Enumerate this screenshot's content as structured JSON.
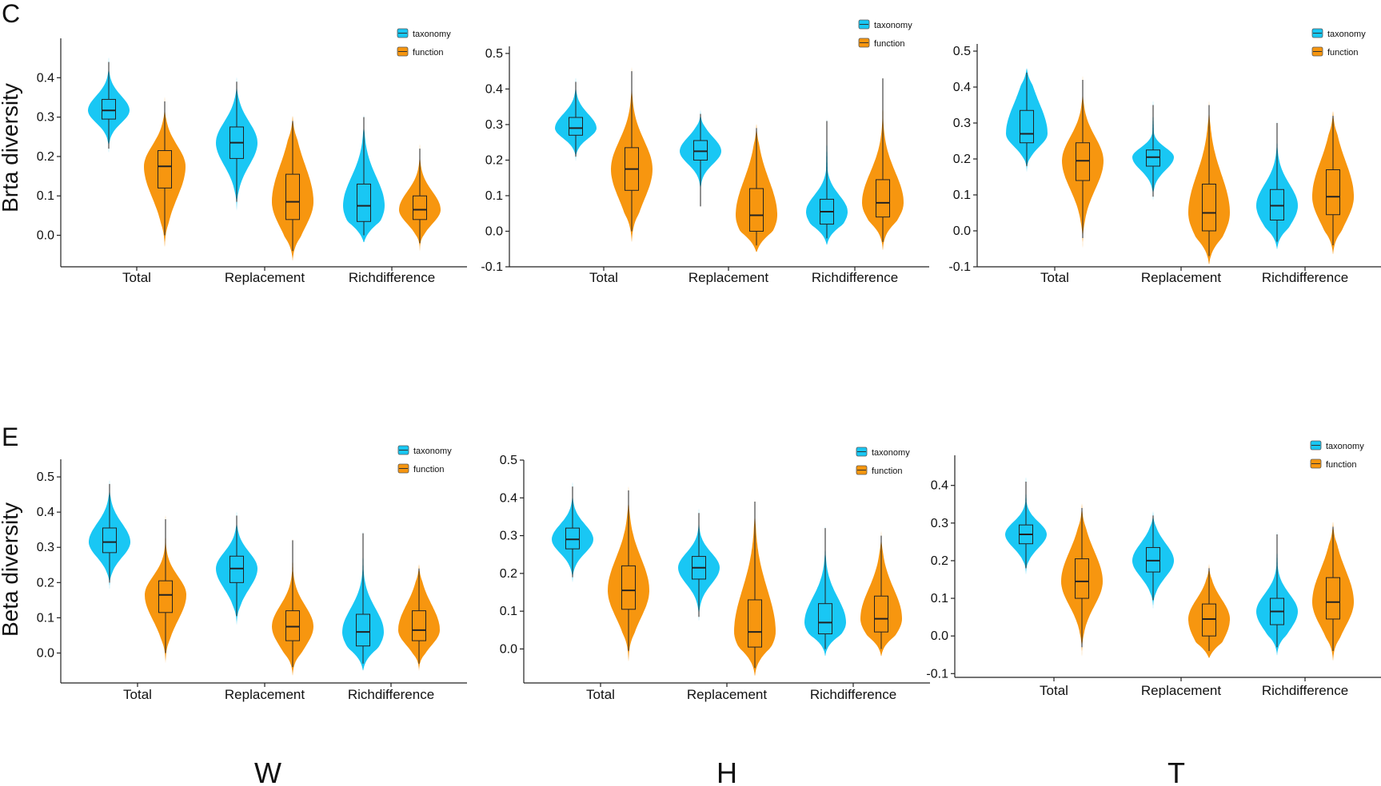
{
  "figure": {
    "rows": [
      {
        "letter": "C",
        "ylabel": "Brta diversity"
      },
      {
        "letter": "E",
        "ylabel": "Beta diversity"
      }
    ],
    "column_labels": [
      "W",
      "H",
      "T"
    ]
  },
  "colors": {
    "taxonomy": "#19C7F4",
    "function": "#F7960F",
    "box_stroke": "#222222",
    "axis": "#222222"
  },
  "chart_data": [
    {
      "type": "violin",
      "row": "C",
      "column": "W",
      "ylabel": "Brta diversity",
      "categories": [
        "Total",
        "Replacement",
        "Richdifference"
      ],
      "legend": [
        "taxonomy",
        "function"
      ],
      "ylim": [
        -0.08,
        0.5
      ],
      "yticks": [
        "0.0",
        "0.1",
        "0.2",
        "0.3",
        "0.4"
      ],
      "series": [
        {
          "name": "taxonomy",
          "stats": [
            {
              "min": 0.22,
              "q1": 0.295,
              "median": 0.317,
              "q3": 0.345,
              "max": 0.44
            },
            {
              "min": 0.085,
              "q1": 0.195,
              "median": 0.235,
              "q3": 0.275,
              "max": 0.39
            },
            {
              "min": 0.0,
              "q1": 0.035,
              "median": 0.075,
              "q3": 0.13,
              "max": 0.3
            }
          ]
        },
        {
          "name": "function",
          "stats": [
            {
              "min": 0.0,
              "q1": 0.12,
              "median": 0.175,
              "q3": 0.215,
              "max": 0.34
            },
            {
              "min": -0.04,
              "q1": 0.04,
              "median": 0.085,
              "q3": 0.155,
              "max": 0.29
            },
            {
              "min": -0.02,
              "q1": 0.04,
              "median": 0.065,
              "q3": 0.1,
              "max": 0.22
            }
          ]
        }
      ]
    },
    {
      "type": "violin",
      "row": "C",
      "column": "H",
      "ylabel": "",
      "categories": [
        "Total",
        "Replacement",
        "Richdifference"
      ],
      "legend": [
        "taxonomy",
        "function"
      ],
      "ylim": [
        -0.1,
        0.52
      ],
      "yticks": [
        "-0.1",
        "0.0",
        "0.1",
        "0.2",
        "0.3",
        "0.4",
        "0.5"
      ],
      "series": [
        {
          "name": "taxonomy",
          "stats": [
            {
              "min": 0.21,
              "q1": 0.27,
              "median": 0.29,
              "q3": 0.32,
              "max": 0.42
            },
            {
              "min": 0.07,
              "q1": 0.2,
              "median": 0.225,
              "q3": 0.255,
              "max": 0.33
            },
            {
              "min": -0.02,
              "q1": 0.02,
              "median": 0.055,
              "q3": 0.09,
              "max": 0.31
            }
          ]
        },
        {
          "name": "function",
          "stats": [
            {
              "min": 0.0,
              "q1": 0.115,
              "median": 0.175,
              "q3": 0.235,
              "max": 0.45
            },
            {
              "min": -0.04,
              "q1": 0.0,
              "median": 0.045,
              "q3": 0.12,
              "max": 0.29
            },
            {
              "min": -0.03,
              "q1": 0.04,
              "median": 0.08,
              "q3": 0.145,
              "max": 0.43
            }
          ]
        }
      ]
    },
    {
      "type": "violin",
      "row": "C",
      "column": "T",
      "ylabel": "",
      "categories": [
        "Total",
        "Replacement",
        "Richdifference"
      ],
      "legend": [
        "taxonomy",
        "function"
      ],
      "ylim": [
        -0.1,
        0.52
      ],
      "yticks": [
        "-0.1",
        "0.0",
        "0.1",
        "0.2",
        "0.3",
        "0.4",
        "0.5"
      ],
      "series": [
        {
          "name": "taxonomy",
          "stats": [
            {
              "min": 0.18,
              "q1": 0.245,
              "median": 0.27,
              "q3": 0.335,
              "max": 0.44
            },
            {
              "min": 0.095,
              "q1": 0.18,
              "median": 0.205,
              "q3": 0.225,
              "max": 0.35
            },
            {
              "min": -0.03,
              "q1": 0.03,
              "median": 0.07,
              "q3": 0.115,
              "max": 0.3
            }
          ]
        },
        {
          "name": "function",
          "stats": [
            {
              "min": -0.02,
              "q1": 0.14,
              "median": 0.195,
              "q3": 0.245,
              "max": 0.42
            },
            {
              "min": -0.07,
              "q1": 0.0,
              "median": 0.05,
              "q3": 0.13,
              "max": 0.35
            },
            {
              "min": -0.04,
              "q1": 0.045,
              "median": 0.095,
              "q3": 0.17,
              "max": 0.32
            }
          ]
        }
      ]
    },
    {
      "type": "violin",
      "row": "E",
      "column": "W",
      "ylabel": "Beta diversity",
      "categories": [
        "Total",
        "Replacement",
        "Richdifference"
      ],
      "legend": [
        "taxonomy",
        "function"
      ],
      "ylim": [
        -0.085,
        0.55
      ],
      "yticks": [
        "0.0",
        "0.1",
        "0.2",
        "0.3",
        "0.4",
        "0.5"
      ],
      "series": [
        {
          "name": "taxonomy",
          "stats": [
            {
              "min": 0.2,
              "q1": 0.285,
              "median": 0.315,
              "q3": 0.355,
              "max": 0.48
            },
            {
              "min": 0.105,
              "q1": 0.2,
              "median": 0.24,
              "q3": 0.275,
              "max": 0.39
            },
            {
              "min": -0.03,
              "q1": 0.02,
              "median": 0.06,
              "q3": 0.11,
              "max": 0.34
            }
          ]
        },
        {
          "name": "function",
          "stats": [
            {
              "min": 0.0,
              "q1": 0.115,
              "median": 0.165,
              "q3": 0.205,
              "max": 0.38
            },
            {
              "min": -0.04,
              "q1": 0.035,
              "median": 0.075,
              "q3": 0.12,
              "max": 0.32
            },
            {
              "min": -0.03,
              "q1": 0.035,
              "median": 0.065,
              "q3": 0.12,
              "max": 0.24
            }
          ]
        }
      ]
    },
    {
      "type": "violin",
      "row": "E",
      "column": "H",
      "ylabel": "",
      "categories": [
        "Total",
        "Replacement",
        "Richdifference"
      ],
      "legend": [
        "taxonomy",
        "function"
      ],
      "ylim": [
        -0.09,
        0.5
      ],
      "yticks": [
        "0.0",
        "0.1",
        "0.2",
        "0.3",
        "0.4",
        "0.5"
      ],
      "series": [
        {
          "name": "taxonomy",
          "stats": [
            {
              "min": 0.19,
              "q1": 0.265,
              "median": 0.29,
              "q3": 0.32,
              "max": 0.43
            },
            {
              "min": 0.085,
              "q1": 0.185,
              "median": 0.215,
              "q3": 0.245,
              "max": 0.36
            },
            {
              "min": 0.0,
              "q1": 0.04,
              "median": 0.07,
              "q3": 0.12,
              "max": 0.32
            }
          ]
        },
        {
          "name": "function",
          "stats": [
            {
              "min": -0.005,
              "q1": 0.105,
              "median": 0.155,
              "q3": 0.22,
              "max": 0.42
            },
            {
              "min": -0.05,
              "q1": 0.005,
              "median": 0.045,
              "q3": 0.13,
              "max": 0.39
            },
            {
              "min": 0.0,
              "q1": 0.045,
              "median": 0.08,
              "q3": 0.14,
              "max": 0.3
            }
          ]
        }
      ]
    },
    {
      "type": "violin",
      "row": "E",
      "column": "T",
      "ylabel": "",
      "categories": [
        "Total",
        "Replacement",
        "Richdifference"
      ],
      "legend": [
        "taxonomy",
        "function"
      ],
      "ylim": [
        -0.11,
        0.48
      ],
      "yticks": [
        "-0.1",
        "0.0",
        "0.1",
        "0.2",
        "0.3",
        "0.4"
      ],
      "series": [
        {
          "name": "taxonomy",
          "stats": [
            {
              "min": 0.18,
              "q1": 0.245,
              "median": 0.27,
              "q3": 0.295,
              "max": 0.41
            },
            {
              "min": 0.095,
              "q1": 0.17,
              "median": 0.2,
              "q3": 0.235,
              "max": 0.32
            },
            {
              "min": -0.03,
              "q1": 0.03,
              "median": 0.065,
              "q3": 0.1,
              "max": 0.27
            }
          ]
        },
        {
          "name": "function",
          "stats": [
            {
              "min": -0.03,
              "q1": 0.1,
              "median": 0.145,
              "q3": 0.205,
              "max": 0.34
            },
            {
              "min": -0.04,
              "q1": 0.0,
              "median": 0.045,
              "q3": 0.085,
              "max": 0.18
            },
            {
              "min": -0.04,
              "q1": 0.045,
              "median": 0.09,
              "q3": 0.155,
              "max": 0.29
            }
          ]
        }
      ]
    }
  ]
}
